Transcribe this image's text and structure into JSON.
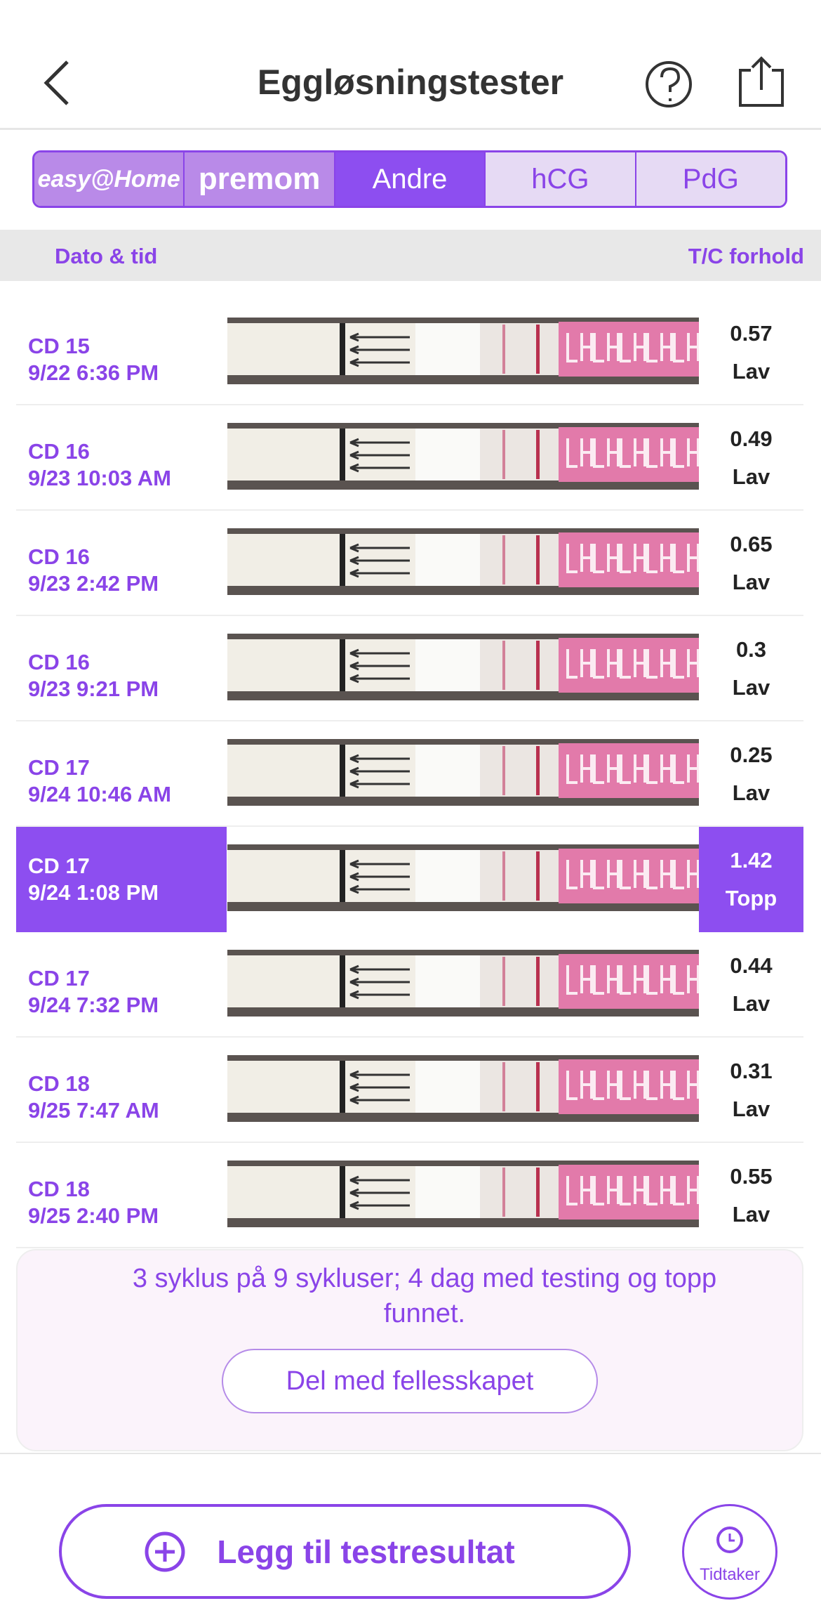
{
  "header": {
    "title": "Eggløsningstester"
  },
  "tabs": [
    {
      "label": "easy@Home"
    },
    {
      "label": "premom"
    },
    {
      "label": "Andre",
      "selected": true
    },
    {
      "label": "hCG"
    },
    {
      "label": "PdG"
    }
  ],
  "columns": [
    "Dato & tid",
    "T/C forhold"
  ],
  "rows": [
    {
      "cycle_day": "CD 15",
      "datetime": "9/22 6:36 PM",
      "ratio": "0.57",
      "level": "Lav"
    },
    {
      "cycle_day": "CD 16",
      "datetime": "9/23 10:03 AM",
      "ratio": "0.49",
      "level": "Lav"
    },
    {
      "cycle_day": "CD 16",
      "datetime": "9/23 2:42 PM",
      "ratio": "0.65",
      "level": "Lav"
    },
    {
      "cycle_day": "CD 16",
      "datetime": "9/23 9:21 PM",
      "ratio": "0.3",
      "level": "Lav"
    },
    {
      "cycle_day": "CD 17",
      "datetime": "9/24 10:46 AM",
      "ratio": "0.25",
      "level": "Lav"
    },
    {
      "cycle_day": "CD 17",
      "datetime": "9/24 1:08 PM",
      "ratio": "1.42",
      "level": "Topp",
      "highlighted": true
    },
    {
      "cycle_day": "CD 17",
      "datetime": "9/24 7:32 PM",
      "ratio": "0.44",
      "level": "Lav"
    },
    {
      "cycle_day": "CD 18",
      "datetime": "9/25 7:47 AM",
      "ratio": "0.31",
      "level": "Lav"
    },
    {
      "cycle_day": "CD 18",
      "datetime": "9/25 2:40 PM",
      "ratio": "0.55",
      "level": "Lav"
    }
  ],
  "banner": {
    "text": "3 syklus på 9 sykluser; 4 dag med testing og topp funnet.",
    "button": "Del med fellesskapet"
  },
  "footer": {
    "add_button": "Legg til testresultat",
    "timer": "Tidtaker"
  }
}
